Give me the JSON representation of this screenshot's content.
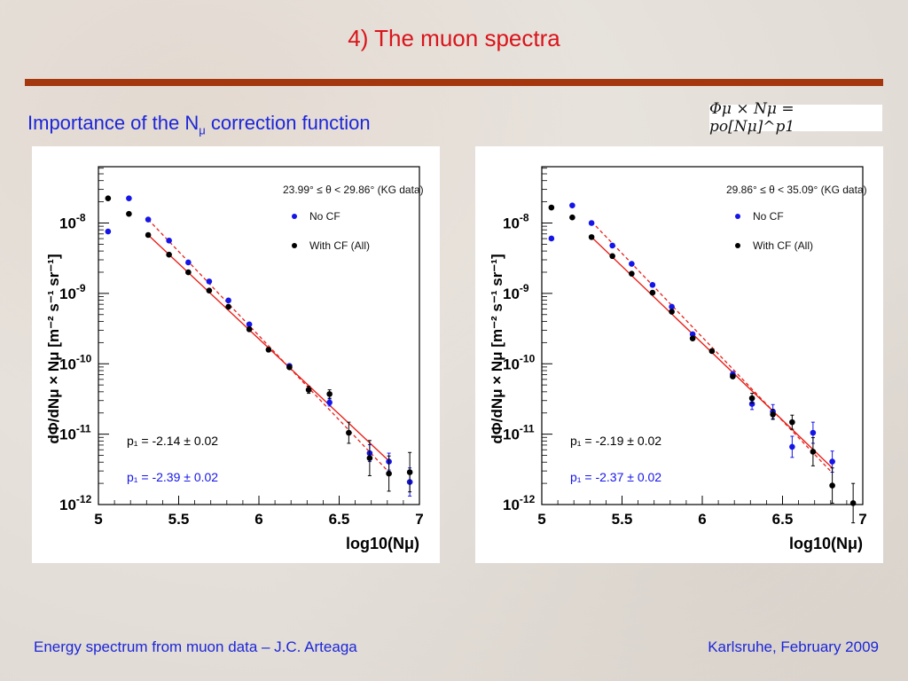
{
  "slide": {
    "title": "4) The muon spectra",
    "subtitle_pre": "Importance of the N",
    "subtitle_sub": "μ",
    "subtitle_post": " correction function",
    "formula": "Φμ × Nμ = po[Nμ]^p1",
    "footer_left": "Energy spectrum from muon data – J.C. Arteaga",
    "footer_right": "Karlsruhe,  February 2009"
  },
  "colors": {
    "title": "#d9141b",
    "text_blue": "#1c26d8",
    "rule": "#a5370e",
    "no_cf": "#1515e8",
    "with_cf": "#000000",
    "fit": "#e8201a"
  },
  "chart_data": [
    {
      "type": "scatter",
      "log_y": true,
      "xlim": [
        5,
        7
      ],
      "ylim_exp": [
        -12,
        -7.2
      ],
      "x_ticks": [
        "5",
        "5.5",
        "6",
        "6.5",
        "7"
      ],
      "y_ticks": [
        "10^-8",
        "10^-9",
        "10^-10",
        "10^-11",
        "10^-12"
      ],
      "ylabel": "dΦ/dNμ × Nμ [m⁻² s⁻¹ sr⁻¹]",
      "xlabel": "log10(Nμ)",
      "range_label": "23.99° ≤ θ < 29.86° (KG data)",
      "legend_no_cf": "No CF",
      "legend_with_cf": "With CF (All)",
      "p1_with_cf": "p₁ = -2.14 ± 0.02",
      "p1_no_cf": "p₁ = -2.39 ± 0.02",
      "series": [
        {
          "name": "No CF",
          "points": [
            [
              5.06,
              -8.12
            ],
            [
              5.19,
              -7.65
            ],
            [
              5.31,
              -7.95
            ],
            [
              5.44,
              -8.25
            ],
            [
              5.56,
              -8.56
            ],
            [
              5.69,
              -8.83
            ],
            [
              5.81,
              -9.1
            ],
            [
              5.94,
              -9.44
            ],
            [
              6.19,
              -10.03
            ],
            [
              6.44,
              -10.55
            ],
            [
              6.69,
              -11.27
            ],
            [
              6.81,
              -11.39
            ],
            [
              6.94,
              -11.68
            ]
          ],
          "errors": [
            0,
            0,
            0,
            0,
            0,
            0,
            0,
            0,
            0,
            0.05,
            0.12,
            0.12,
            0.2
          ]
        },
        {
          "name": "With CF (All)",
          "points": [
            [
              5.06,
              -7.65
            ],
            [
              5.19,
              -7.87
            ],
            [
              5.31,
              -8.17
            ],
            [
              5.44,
              -8.45
            ],
            [
              5.56,
              -8.7
            ],
            [
              5.69,
              -8.96
            ],
            [
              5.81,
              -9.19
            ],
            [
              5.94,
              -9.51
            ],
            [
              6.06,
              -9.8
            ],
            [
              6.19,
              -10.05
            ],
            [
              6.31,
              -10.37
            ],
            [
              6.44,
              -10.43
            ],
            [
              6.56,
              -10.98
            ],
            [
              6.69,
              -11.34
            ],
            [
              6.81,
              -11.56
            ],
            [
              6.94,
              -11.54
            ]
          ],
          "errors": [
            0,
            0,
            0,
            0,
            0,
            0,
            0,
            0,
            0,
            0,
            0.05,
            0.06,
            0.15,
            0.25,
            0.25,
            0.28
          ]
        }
      ],
      "fits": {
        "with_cf": [
          [
            5.31,
            -8.17
          ],
          [
            6.81,
            -11.38
          ]
        ],
        "no_cf": [
          [
            5.31,
            -7.95
          ],
          [
            6.81,
            -11.54
          ]
        ]
      }
    },
    {
      "type": "scatter",
      "log_y": true,
      "xlim": [
        5,
        7
      ],
      "ylim_exp": [
        -12,
        -7.2
      ],
      "x_ticks": [
        "5",
        "5.5",
        "6",
        "6.5",
        "7"
      ],
      "y_ticks": [
        "10^-8",
        "10^-9",
        "10^-10",
        "10^-11",
        "10^-12"
      ],
      "ylabel": "dΦ/dNμ × Nμ [m⁻² s⁻¹ sr⁻¹]",
      "xlabel": "log10(Nμ)",
      "range_label": "29.86° ≤ θ < 35.09° (KG data)",
      "legend_no_cf": "No CF",
      "legend_with_cf": "With CF (All)",
      "p1_with_cf": "p₁ = -2.19 ± 0.02",
      "p1_no_cf": "p₁ = -2.37 ± 0.02",
      "series": [
        {
          "name": "No CF",
          "points": [
            [
              5.06,
              -8.22
            ],
            [
              5.19,
              -7.75
            ],
            [
              5.31,
              -8.0
            ],
            [
              5.44,
              -8.32
            ],
            [
              5.56,
              -8.58
            ],
            [
              5.69,
              -8.88
            ],
            [
              5.81,
              -9.19
            ],
            [
              5.94,
              -9.58
            ],
            [
              6.19,
              -10.15
            ],
            [
              6.31,
              -10.57
            ],
            [
              6.44,
              -10.68
            ],
            [
              6.56,
              -11.18
            ],
            [
              6.69,
              -10.98
            ],
            [
              6.81,
              -11.39
            ]
          ],
          "errors": [
            0,
            0,
            0,
            0,
            0,
            0,
            0,
            0,
            0.04,
            0.08,
            0.1,
            0.15,
            0.15,
            0.15
          ]
        },
        {
          "name": "With CF (All)",
          "points": [
            [
              5.06,
              -7.78
            ],
            [
              5.19,
              -7.92
            ],
            [
              5.31,
              -8.2
            ],
            [
              5.44,
              -8.47
            ],
            [
              5.56,
              -8.72
            ],
            [
              5.69,
              -8.99
            ],
            [
              5.81,
              -9.26
            ],
            [
              5.94,
              -9.64
            ],
            [
              6.06,
              -9.82
            ],
            [
              6.19,
              -10.18
            ],
            [
              6.31,
              -10.49
            ],
            [
              6.44,
              -10.72
            ],
            [
              6.56,
              -10.83
            ],
            [
              6.69,
              -11.25
            ],
            [
              6.81,
              -11.73
            ],
            [
              6.94,
              -11.98
            ]
          ],
          "errors": [
            0,
            0,
            0,
            0,
            0,
            0,
            0,
            0,
            0,
            0,
            0.07,
            0.07,
            0.1,
            0.2,
            0.25,
            0.28
          ]
        }
      ],
      "fits": {
        "with_cf": [
          [
            5.31,
            -8.2
          ],
          [
            6.81,
            -11.48
          ]
        ],
        "no_cf": [
          [
            5.31,
            -7.98
          ],
          [
            6.81,
            -11.55
          ]
        ]
      }
    }
  ]
}
